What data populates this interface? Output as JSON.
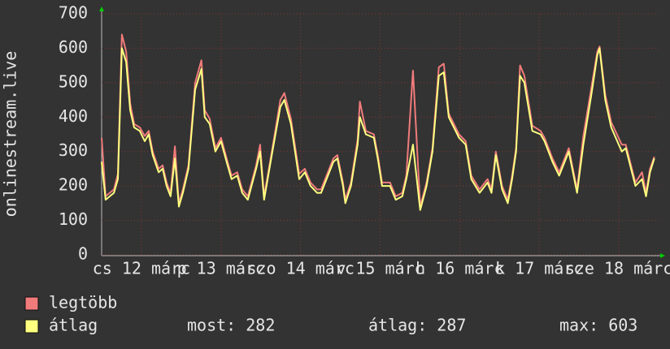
{
  "chart_data": {
    "type": "line",
    "y_label": "onlinestream.live",
    "x": [
      0,
      1.2,
      3.7,
      4.9,
      6.1,
      7.4,
      8.6,
      9.8,
      11.5,
      13,
      14.2,
      15.4,
      17.2,
      18.4,
      19.6,
      20.8,
      22.1,
      23.3,
      24.5,
      26.2,
      28.2,
      30.1,
      31.1,
      32.6,
      34.3,
      36,
      38,
      39.2,
      40.9,
      42.4,
      44.1,
      46.6,
      47.8,
      49,
      51.5,
      53.9,
      55.1,
      57.1,
      59.6,
      61.3,
      63,
      65,
      66.2,
      69.9,
      71.1,
      72.8,
      73.5,
      75.2,
      77.2,
      77.9,
      79.7,
      82.1,
      83.3,
      84.6,
      87,
      88.7,
      90.7,
      91.9,
      93.9,
      96.1,
      98,
      99.8,
      101.7,
      103.2,
      104.7,
      107.8,
      109.8,
      111.5,
      114,
      116.4,
      117.6,
      118.9,
      120.8,
      122.5,
      123.8,
      125,
      126.2,
      127.5,
      129.9,
      132.4,
      133.6,
      136,
      138,
      140.9,
      143.4,
      145.3,
      147.8,
      149.5,
      150.2,
      151.9,
      153.7,
      156.9,
      158.1,
      161,
      163,
      164.2,
      165.4,
      166.7
    ],
    "series": [
      {
        "name": "legtöbb",
        "color": "#f07b7b",
        "values": [
          340,
          170,
          190,
          235,
          640,
          590,
          440,
          380,
          370,
          345,
          360,
          300,
          250,
          260,
          210,
          180,
          315,
          150,
          190,
          260,
          500,
          565,
          420,
          395,
          310,
          340,
          270,
          230,
          240,
          190,
          170,
          260,
          320,
          170,
          310,
          450,
          470,
          395,
          235,
          250,
          210,
          190,
          190,
          280,
          290,
          210,
          160,
          210,
          335,
          445,
          360,
          350,
          290,
          210,
          210,
          170,
          180,
          230,
          535,
          140,
          210,
          310,
          545,
          555,
          410,
          350,
          330,
          230,
          190,
          220,
          190,
          300,
          200,
          160,
          230,
          310,
          550,
          520,
          375,
          360,
          340,
          280,
          240,
          310,
          190,
          345,
          490,
          590,
          605,
          465,
          385,
          320,
          320,
          210,
          240,
          180,
          250,
          285
        ]
      },
      {
        "name": "átlag",
        "color": "#ffff80",
        "values": [
          270,
          160,
          180,
          220,
          600,
          560,
          420,
          370,
          360,
          330,
          350,
          290,
          240,
          250,
          200,
          170,
          280,
          140,
          180,
          250,
          480,
          540,
          400,
          380,
          300,
          330,
          260,
          220,
          230,
          180,
          160,
          250,
          300,
          160,
          300,
          430,
          450,
          380,
          220,
          240,
          200,
          180,
          180,
          270,
          280,
          200,
          150,
          200,
          320,
          400,
          350,
          340,
          280,
          200,
          200,
          160,
          170,
          220,
          320,
          130,
          200,
          300,
          520,
          530,
          400,
          340,
          320,
          220,
          180,
          210,
          180,
          290,
          190,
          150,
          220,
          300,
          520,
          500,
          360,
          350,
          330,
          270,
          230,
          300,
          180,
          320,
          470,
          580,
          600,
          450,
          370,
          300,
          310,
          200,
          220,
          170,
          240,
          280
        ]
      }
    ],
    "xlim": [
      0,
      168
    ],
    "xticks": [
      {
        "value": 12,
        "label": "cs 12 márc"
      },
      {
        "value": 36,
        "label": "p 13 márc"
      },
      {
        "value": 60,
        "label": "szo 14 márc"
      },
      {
        "value": 84,
        "label": "v 15 márc"
      },
      {
        "value": 108,
        "label": "h 16 márc"
      },
      {
        "value": 132,
        "label": "k 17 márc"
      },
      {
        "value": 156,
        "label": "sze 18 márc"
      }
    ],
    "ylim": [
      0,
      700
    ],
    "yticks": [
      0,
      100,
      200,
      300,
      400,
      500,
      600,
      700
    ],
    "grid": true,
    "legend": [
      {
        "label": "legtöbb",
        "color": "#f07b7b"
      },
      {
        "label": "átlag",
        "color": "#ffff80"
      }
    ],
    "stats": [
      "most: 282",
      "átlag: 287",
      "max: 603"
    ]
  }
}
